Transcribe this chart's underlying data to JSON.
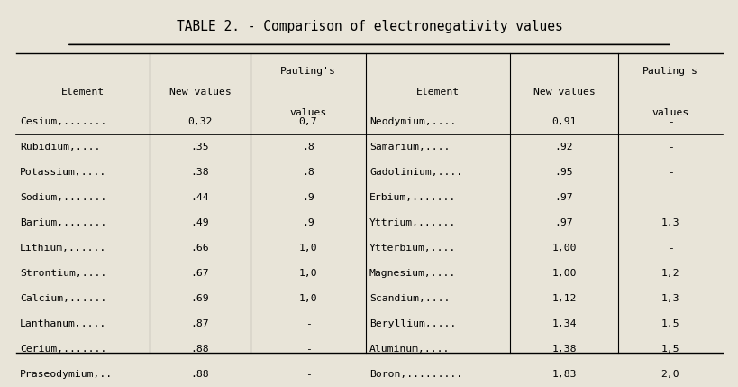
{
  "title": "TABLE 2. - Comparison of electronegativity values",
  "bg_color": "#e8e4d8",
  "left_data": [
    [
      "Cesium,.......",
      "0,32",
      "0,7"
    ],
    [
      "Rubidium,....",
      ".35",
      ".8"
    ],
    [
      "Potassium,....",
      ".38",
      ".8"
    ],
    [
      "Sodium,.......",
      ".44",
      ".9"
    ],
    [
      "Barium,.......",
      ".49",
      ".9"
    ],
    [
      "Lithium,......",
      ".66",
      "1,0"
    ],
    [
      "Strontium,....",
      ".67",
      "1,0"
    ],
    [
      "Calcium,......",
      ".69",
      "1,0"
    ],
    [
      "Lanthanum,....",
      ".87",
      "-"
    ],
    [
      "Cerium,.......",
      ".88",
      "-"
    ],
    [
      "Praseodymium,..",
      ".88",
      "-"
    ]
  ],
  "right_data": [
    [
      "Neodymium,....",
      "0,91",
      "-"
    ],
    [
      "Samarium,....",
      ".92",
      "-"
    ],
    [
      "Gadolinium,....",
      ".95",
      "-"
    ],
    [
      "Erbium,.......",
      ".97",
      "-"
    ],
    [
      "Yttrium,......",
      ".97",
      "1,3"
    ],
    [
      "Ytterbium,....",
      "1,00",
      "-"
    ],
    [
      "Magnesium,....",
      "1,00",
      "1,2"
    ],
    [
      "Scandium,....",
      "1,12",
      "1,3"
    ],
    [
      "Beryllium,....",
      "1,34",
      "1,5"
    ],
    [
      "Aluminum,....",
      "1,38",
      "1,5"
    ],
    [
      "Boron,.........",
      "1,83",
      "2,0"
    ]
  ],
  "col_headers_left": [
    "Element",
    "New values",
    "Pauling's\nvalues"
  ],
  "col_headers_right": [
    "Element",
    "New values",
    "Pauling's\nvalues"
  ]
}
